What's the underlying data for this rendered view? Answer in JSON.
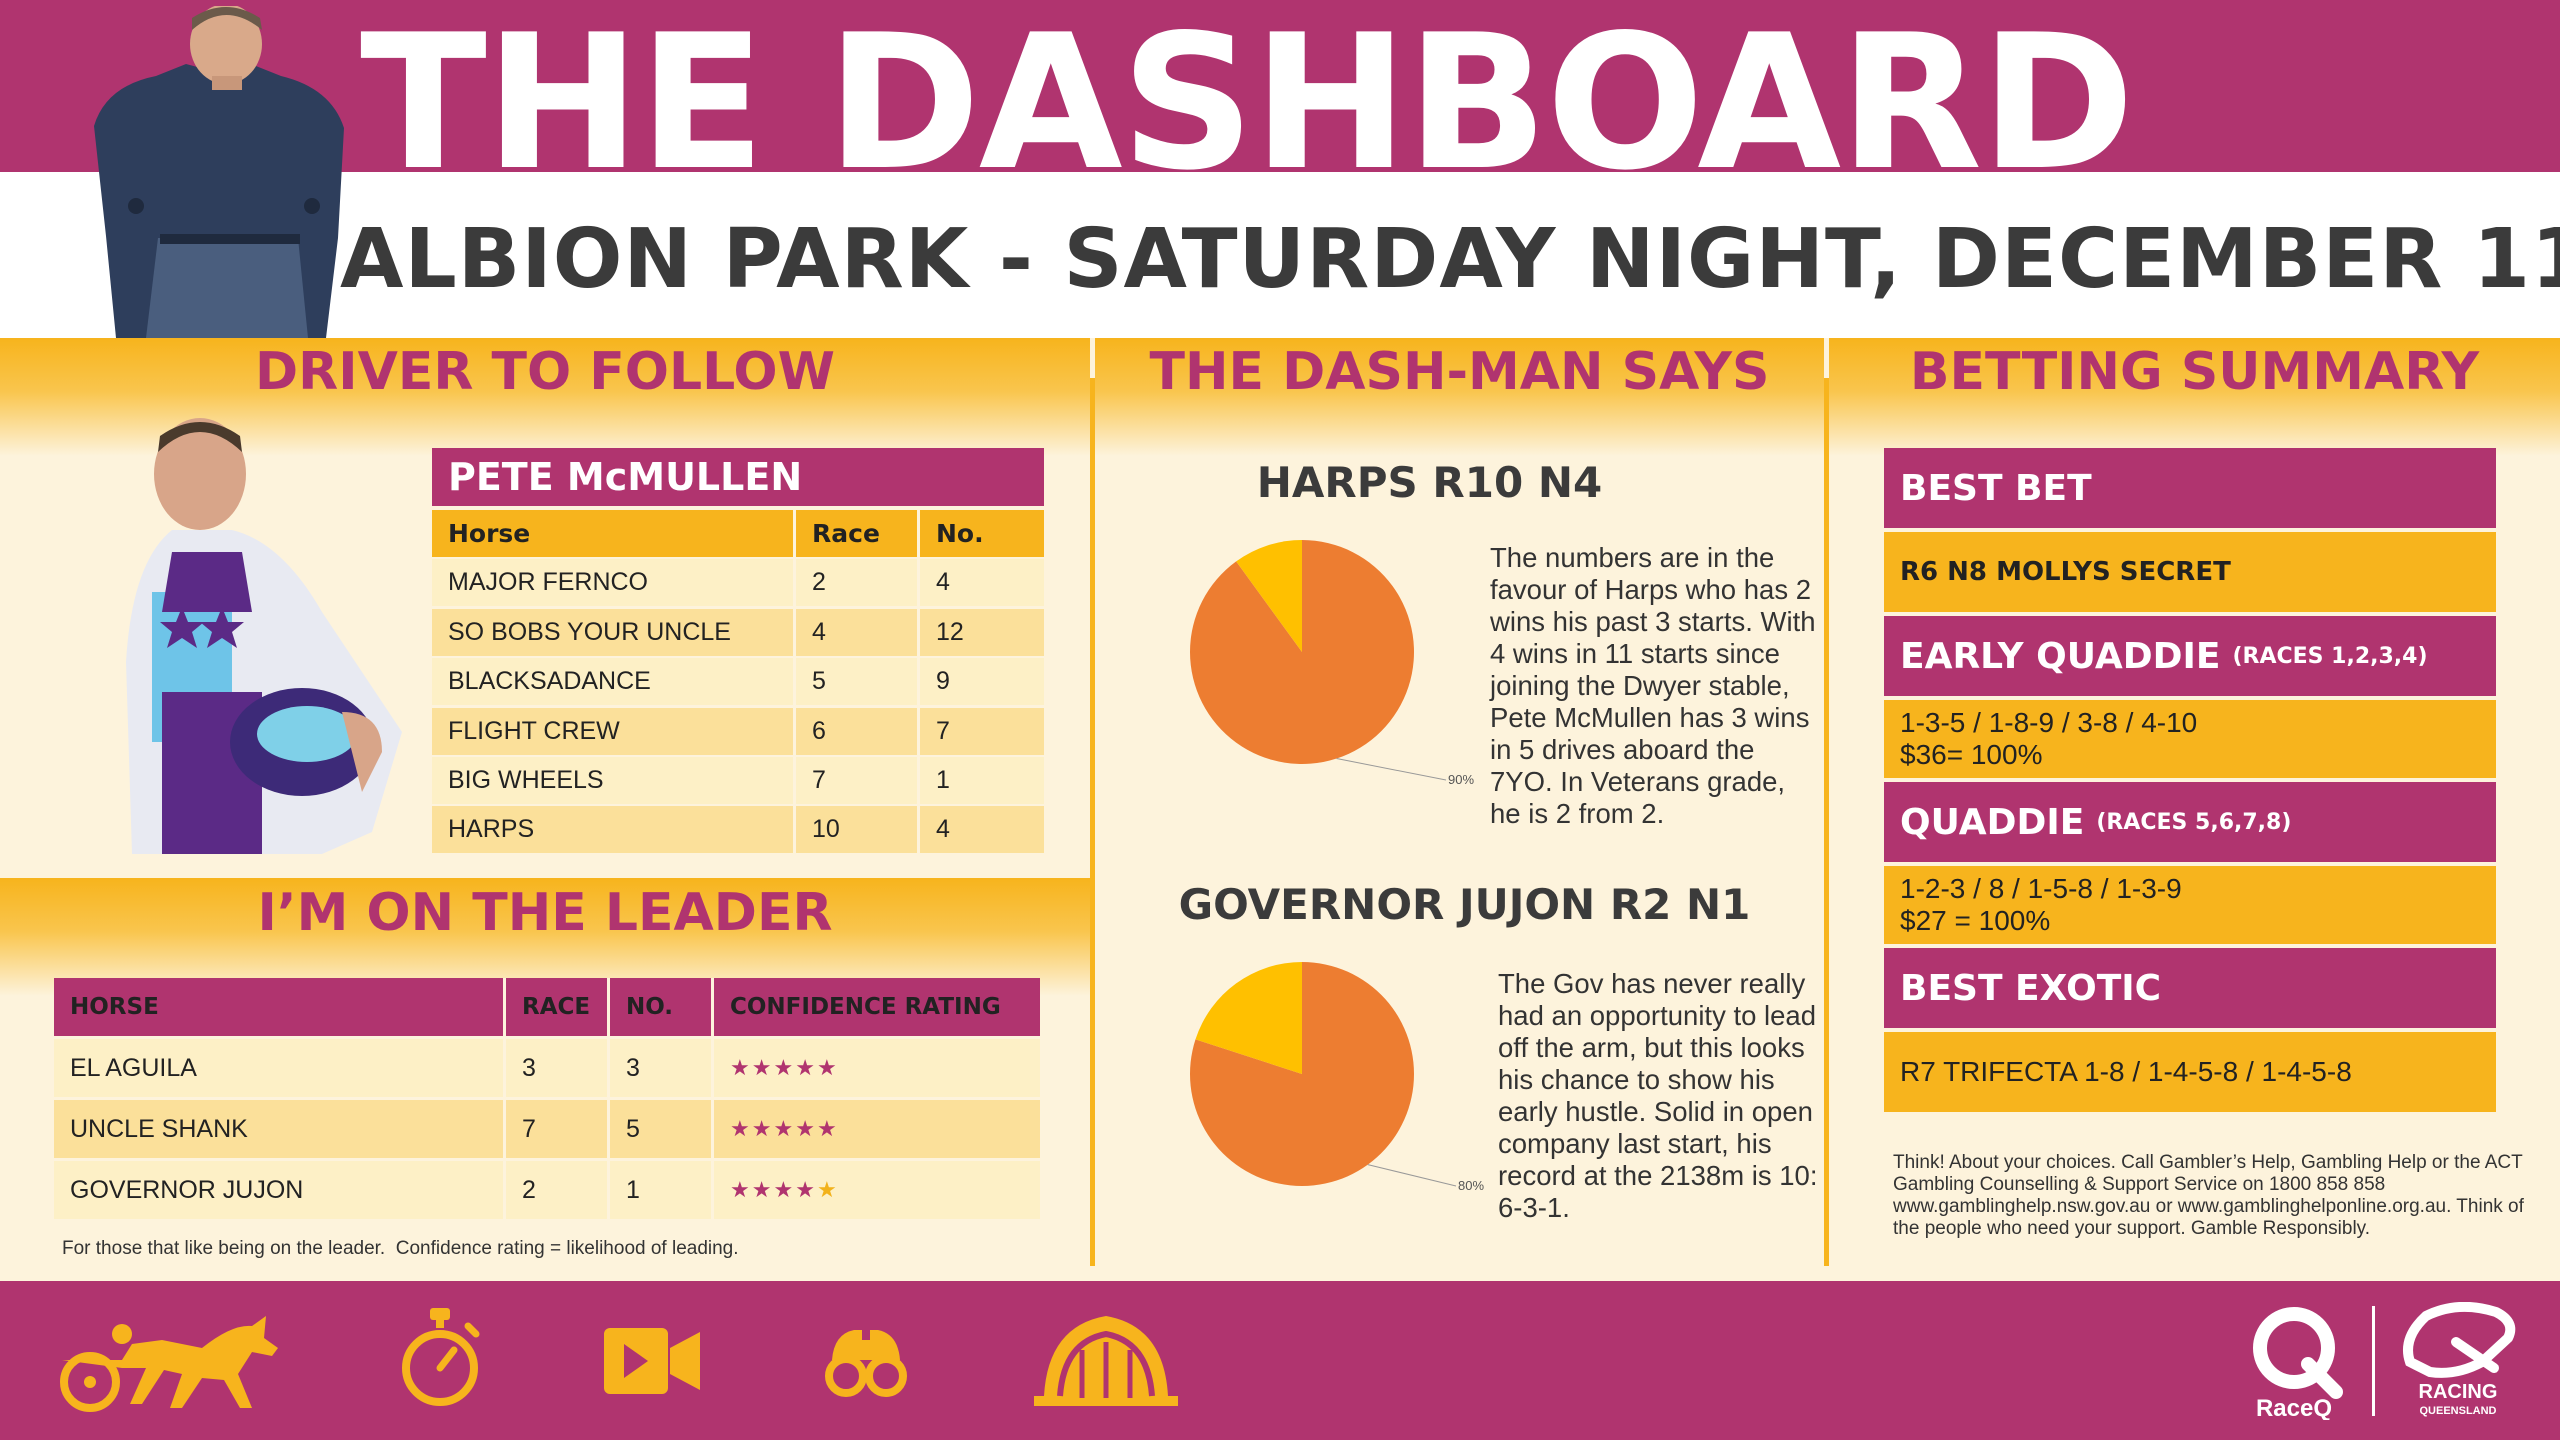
{
  "header": {
    "title": "THE DASHBOARD",
    "subtitle": "ALBION PARK - SATURDAY NIGHT, DECEMBER 11"
  },
  "driver_section": {
    "title": "DRIVER TO FOLLOW",
    "driver_name": "PETE McMULLEN",
    "columns": [
      "Horse",
      "Race",
      "No."
    ],
    "rows": [
      {
        "horse": "MAJOR FERNCO",
        "race": "2",
        "no": "4"
      },
      {
        "horse": "SO BOBS YOUR UNCLE",
        "race": "4",
        "no": "12"
      },
      {
        "horse": "BLACKSADANCE",
        "race": "5",
        "no": "9"
      },
      {
        "horse": "FLIGHT CREW",
        "race": "6",
        "no": "7"
      },
      {
        "horse": "BIG WHEELS",
        "race": "7",
        "no": "1"
      },
      {
        "horse": "HARPS",
        "race": "10",
        "no": "4"
      }
    ]
  },
  "leader_section": {
    "title": "I’M ON THE LEADER",
    "columns": [
      "HORSE",
      "RACE",
      "NO.",
      "CONFIDENCE RATING"
    ],
    "rows": [
      {
        "horse": "EL AGUILA",
        "race": "3",
        "no": "3",
        "rating": 5
      },
      {
        "horse": "UNCLE SHANK",
        "race": "7",
        "no": "5",
        "rating": 5
      },
      {
        "horse": "GOVERNOR JUJON",
        "race": "2",
        "no": "1",
        "rating": 4
      }
    ],
    "note": "For those that like being on the leader.  Confidence rating = likelihood of leading."
  },
  "dashman_section": {
    "title": "THE DASH-MAN SAYS",
    "picks": [
      {
        "heading": "HARPS R10 N4",
        "pie_percent": 90,
        "pie_label": "90%",
        "text": "The numbers are in the favour of Harps who has 2 wins his past 3 starts. With 4 wins in 11 starts since joining the Dwyer stable, Pete McMullen has 3 wins in 5 drives aboard the 7YO. In Veterans grade, he is 2 from 2."
      },
      {
        "heading": "GOVERNOR JUJON R2 N1",
        "pie_percent": 80,
        "pie_label": "80%",
        "text": "The Gov has never really had an opportunity to lead off the arm, but this looks his chance to show his early hustle. Solid in open company last start, his record at the 2138m is 10: 6-3-1."
      }
    ]
  },
  "betting_section": {
    "title": "BETTING SUMMARY",
    "best_bet": {
      "label": "BEST BET",
      "value": "R6 N8 MOLLYS SECRET"
    },
    "early_quaddie": {
      "label": "EARLY QUADDIE",
      "sub": "(RACES 1,2,3,4)",
      "line1": "1-3-5 / 1-8-9 / 3-8 / 4-10",
      "line2": "$36= 100%"
    },
    "quaddie": {
      "label": "QUADDIE",
      "sub": "(RACES 5,6,7,8)",
      "line1": "1-2-3 / 8 / 1-5-8 / 1-3-9",
      "line2": "$27 = 100%"
    },
    "best_exotic": {
      "label": "BEST EXOTIC",
      "value": "R7 TRIFECTA 1-8 / 1-4-5-8 / 1-4-5-8"
    },
    "disclaimer": "Think! About your choices. Call Gambler’s Help, Gambling Help or the ACT Gambling Counselling & Support Service on 1800 858 858 www.gamblinghelp.nsw.gov.au or www.gamblinghelponline.org.au. Think of the people who need your support. Gamble Responsibly."
  },
  "footer": {
    "icons": [
      "harness-racing-icon",
      "stopwatch-icon",
      "video-camera-icon",
      "binoculars-icon",
      "starting-gate-icon"
    ],
    "raceq_label": "RaceQ",
    "rq_label_1": "RACING",
    "rq_label_2": "QUEENSLAND"
  },
  "colors": {
    "magenta": "#b0346f",
    "gold": "#f7b41d",
    "cream": "#fdf3dc",
    "pie_orange": "#ed7d31",
    "pie_yellow": "#ffc000"
  }
}
